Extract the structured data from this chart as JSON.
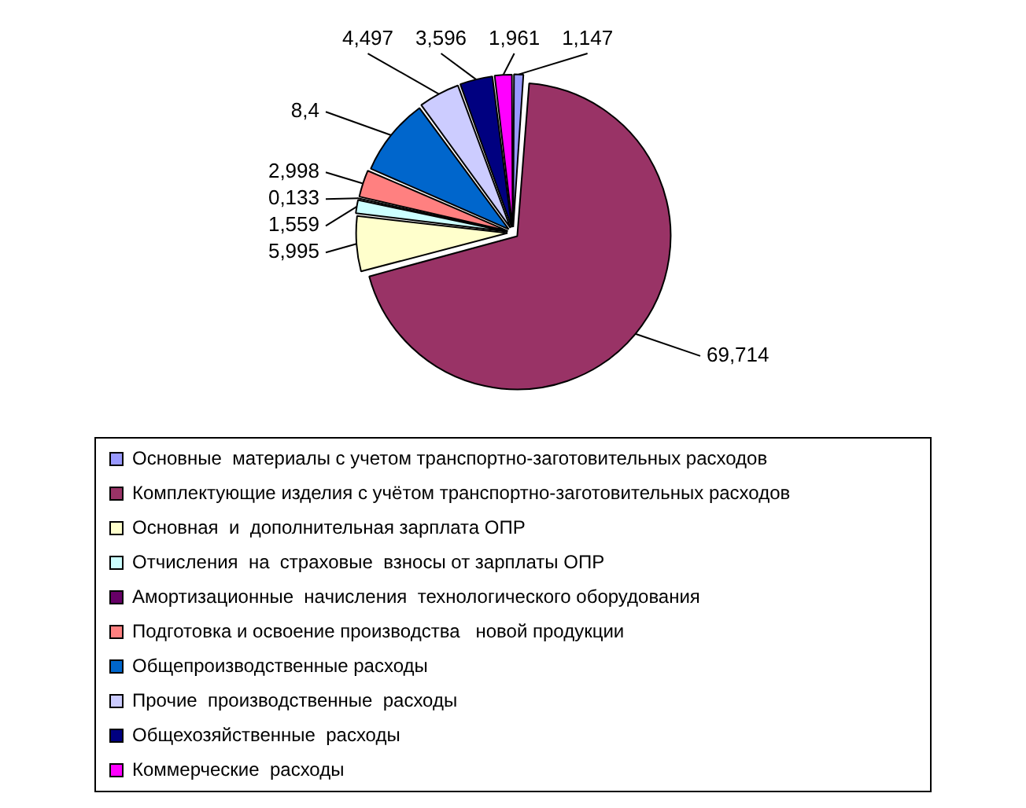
{
  "chart_data": {
    "type": "pie",
    "categories": [
      "Основные  материалы с учетом транспортно-заготовительных расходов",
      "Комплектующие изделия с учётом транспортно-заготовительных расходов",
      "Основная  и  дополнительная зарплата ОПР",
      "Отчисления  на  страховые  взносы от зарплаты ОПР",
      "Амортизационные  начисления  технологического оборудования",
      "Подготовка и освоение производства   новой продукции",
      "Общепроизводственные расходы",
      "Прочие  производственные  расходы",
      "Общехозяйственные  расходы",
      "Коммерческие  расходы"
    ],
    "values": [
      1.147,
      69.714,
      5.995,
      1.559,
      0.133,
      2.998,
      8.4,
      4.497,
      3.596,
      1.961
    ],
    "colors": [
      "#9999ff",
      "#993366",
      "#ffffcc",
      "#ccffff",
      "#660066",
      "#ff8080",
      "#0066cc",
      "#ccccff",
      "#000080",
      "#ff00ff"
    ],
    "value_labels": [
      "1,147",
      "69,714",
      "5,995",
      "1,559",
      "0,133",
      "2,998",
      "8,4",
      "4,497",
      "3,596",
      "1,961"
    ],
    "legend": "bottom"
  }
}
